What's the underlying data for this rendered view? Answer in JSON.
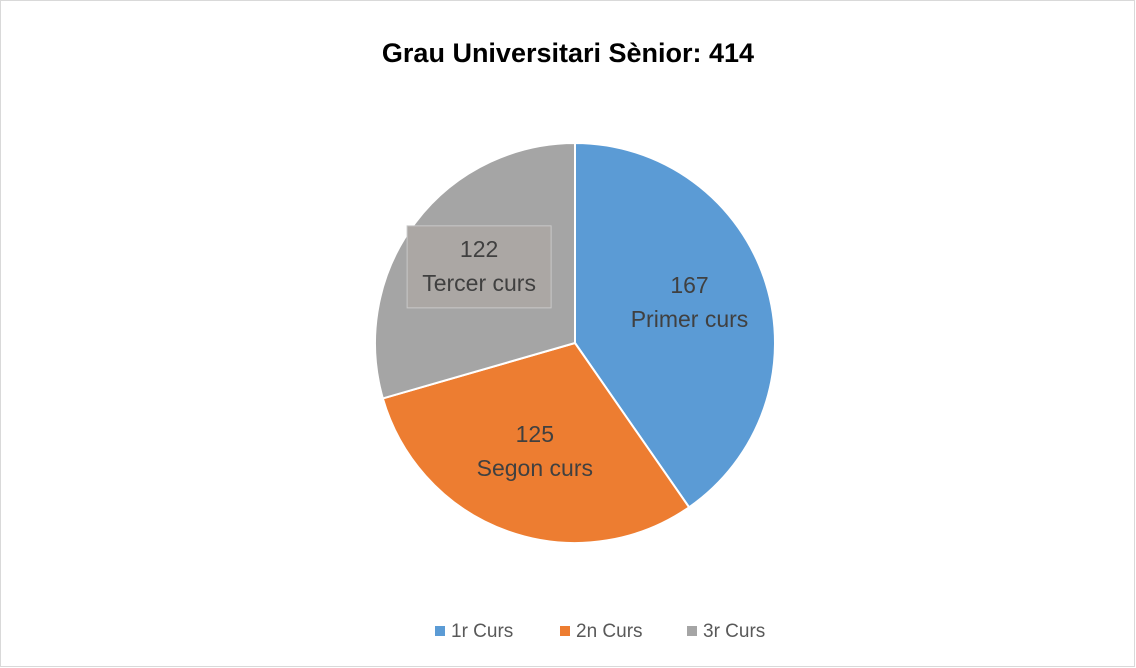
{
  "chart_data": {
    "type": "pie",
    "title": "Grau Universitari Sènior: 414",
    "categories": [
      "1r Curs",
      "2n Curs",
      "3r Curs"
    ],
    "values": [
      167,
      125,
      122
    ],
    "slice_labels": [
      "Primer curs",
      "Segon curs",
      "Tercer curs"
    ],
    "colors": [
      "#5b9bd5",
      "#ed7d31",
      "#a5a5a5"
    ],
    "legend": "bottom"
  }
}
